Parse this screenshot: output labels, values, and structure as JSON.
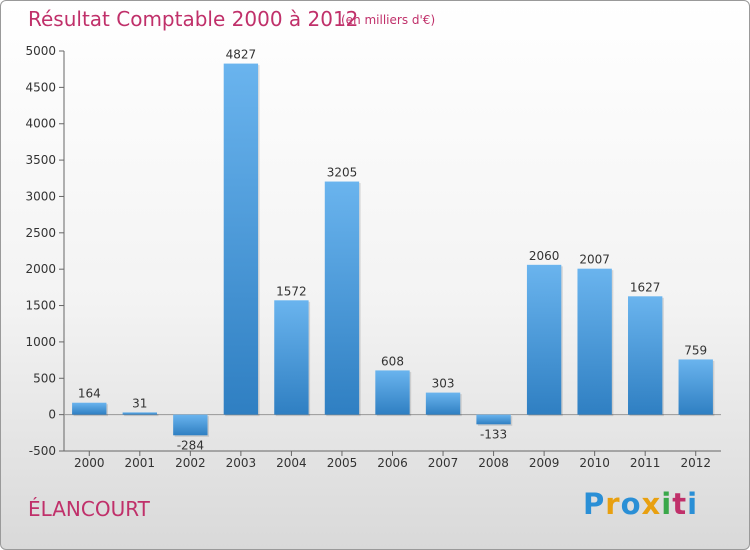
{
  "header": {
    "title": "Résultat Comptable 2000 à 2012",
    "subtitle": "(en milliers d'€)"
  },
  "footer": {
    "commune": "ÉLANCOURT",
    "brand_letters": [
      "P",
      "r",
      "o",
      "x",
      "i",
      "t",
      "i"
    ],
    "brand_colors": [
      "#2a8fd6",
      "#e8a010",
      "#2a8fd6",
      "#e8a010",
      "#3aa84a",
      "#c0306a",
      "#2a8fd6"
    ]
  },
  "chart_data": {
    "type": "bar",
    "categories": [
      "2000",
      "2001",
      "2002",
      "2003",
      "2004",
      "2005",
      "2006",
      "2007",
      "2008",
      "2009",
      "2010",
      "2011",
      "2012"
    ],
    "values": [
      164,
      31,
      -284,
      4827,
      1572,
      3205,
      608,
      303,
      -133,
      2060,
      2007,
      1627,
      759
    ],
    "data_labels": [
      "164",
      "31",
      "-284",
      "4827",
      "1572",
      "3205",
      "608",
      "303",
      "-133",
      "2060",
      "2007",
      "1627",
      "759"
    ],
    "ylim": [
      -500,
      5000
    ],
    "yticks": [
      -500,
      0,
      500,
      1000,
      1500,
      2000,
      2500,
      3000,
      3500,
      4000,
      4500,
      5000
    ],
    "ytick_labels": [
      "-500",
      "0",
      "500",
      "1000",
      "1500",
      "2000",
      "2500",
      "3000",
      "3500",
      "4000",
      "4500",
      "5000"
    ],
    "bar_color_light": "#6ab4ee",
    "bar_color_dark": "#2f7fc2",
    "grid": false
  }
}
